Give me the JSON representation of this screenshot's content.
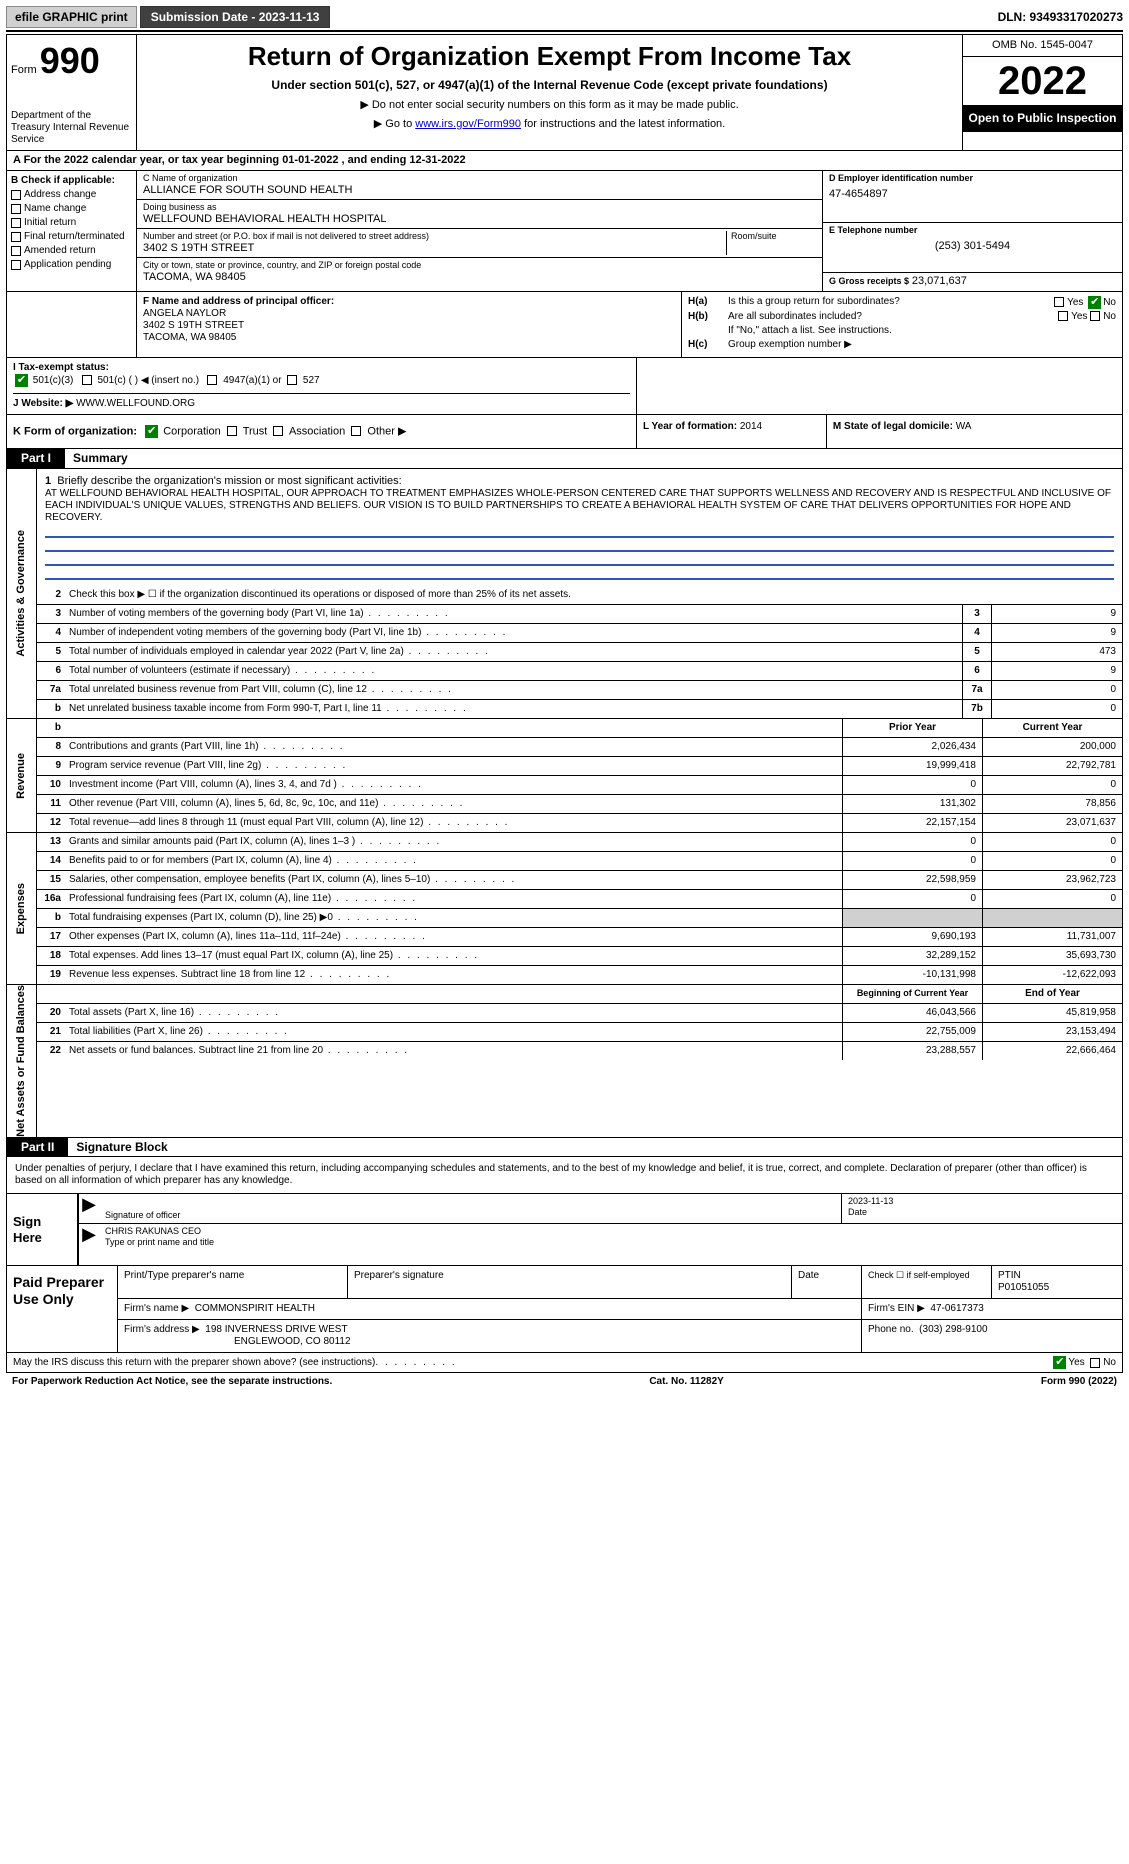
{
  "topbar": {
    "efile": "efile GRAPHIC print",
    "submission": "Submission Date - 2023-11-13",
    "dln": "DLN: 93493317020273"
  },
  "header": {
    "form_word": "Form",
    "form_num": "990",
    "dept": "Department of the Treasury\nInternal Revenue Service",
    "title": "Return of Organization Exempt From Income Tax",
    "sub1": "Under section 501(c), 527, or 4947(a)(1) of the Internal Revenue Code (except private foundations)",
    "sub2a": "▶ Do not enter social security numbers on this form as it may be made public.",
    "sub2b_pre": "▶ Go to ",
    "sub2b_link": "www.irs.gov/Form990",
    "sub2b_post": " for instructions and the latest information.",
    "omb": "OMB No. 1545-0047",
    "year": "2022",
    "open": "Open to Public Inspection"
  },
  "sectionA": "A  For the 2022 calendar year, or tax year beginning 01-01-2022    , and ending 12-31-2022",
  "B": {
    "title": "B Check if applicable:",
    "items": [
      "Address change",
      "Name change",
      "Initial return",
      "Final return/terminated",
      "Amended return",
      "Application pending"
    ]
  },
  "C": {
    "name_label": "C Name of organization",
    "name": "ALLIANCE FOR SOUTH SOUND HEALTH",
    "dba_label": "Doing business as",
    "dba": "WELLFOUND BEHAVIORAL HEALTH HOSPITAL",
    "street_label": "Number and street (or P.O. box if mail is not delivered to street address)",
    "room_label": "Room/suite",
    "street": "3402 S 19TH STREET",
    "city_label": "City or town, state or province, country, and ZIP or foreign postal code",
    "city": "TACOMA, WA  98405"
  },
  "D": {
    "label": "D Employer identification number",
    "value": "47-4654897"
  },
  "E": {
    "label": "E Telephone number",
    "value": "(253) 301-5494"
  },
  "G": {
    "label": "G Gross receipts $",
    "value": "23,071,637"
  },
  "F": {
    "label": "F  Name and address of principal officer:",
    "name": "ANGELA NAYLOR",
    "street": "3402 S 19TH STREET",
    "city": "TACOMA, WA  98405"
  },
  "H": {
    "ha_label": "H(a)",
    "ha_text": "Is this a group return for subordinates?",
    "hb_label": "H(b)",
    "hb_text": "Are all subordinates included?",
    "hb_note": "If \"No,\" attach a list. See instructions.",
    "hc_label": "H(c)",
    "hc_text": "Group exemption number ▶",
    "yes": "Yes",
    "no": "No"
  },
  "I": {
    "label": "I    Tax-exempt status:",
    "opts": [
      "501(c)(3)",
      "501(c) (  ) ◀ (insert no.)",
      "4947(a)(1) or",
      "527"
    ]
  },
  "J": {
    "label": "J   Website: ▶",
    "value": "WWW.WELLFOUND.ORG"
  },
  "K": {
    "label": "K Form of organization:",
    "opts": [
      "Corporation",
      "Trust",
      "Association",
      "Other ▶"
    ]
  },
  "L": {
    "label": "L Year of formation:",
    "value": "2014"
  },
  "M": {
    "label": "M State of legal domicile:",
    "value": "WA"
  },
  "part1": {
    "label": "Part I",
    "title": "Summary"
  },
  "mission": {
    "num": "1",
    "label": "Briefly describe the organization's mission or most significant activities:",
    "text": "AT WELLFOUND BEHAVIORAL HEALTH HOSPITAL, OUR APPROACH TO TREATMENT EMPHASIZES WHOLE-PERSON CENTERED CARE THAT SUPPORTS WELLNESS AND RECOVERY AND IS RESPECTFUL AND INCLUSIVE OF EACH INDIVIDUAL'S UNIQUE VALUES, STRENGTHS AND BELIEFS. OUR VISION IS TO BUILD PARTNERSHIPS TO CREATE A BEHAVIORAL HEALTH SYSTEM OF CARE THAT DELIVERS OPPORTUNITIES FOR HOPE AND RECOVERY."
  },
  "activities": {
    "side": "Activities & Governance",
    "rows": [
      {
        "n": "2",
        "t": "Check this box ▶ ☐  if the organization discontinued its operations or disposed of more than 25% of its net assets.",
        "ref": "",
        "v": ""
      },
      {
        "n": "3",
        "t": "Number of voting members of the governing body (Part VI, line 1a)",
        "ref": "3",
        "v": "9"
      },
      {
        "n": "4",
        "t": "Number of independent voting members of the governing body (Part VI, line 1b)",
        "ref": "4",
        "v": "9"
      },
      {
        "n": "5",
        "t": "Total number of individuals employed in calendar year 2022 (Part V, line 2a)",
        "ref": "5",
        "v": "473"
      },
      {
        "n": "6",
        "t": "Total number of volunteers (estimate if necessary)",
        "ref": "6",
        "v": "9"
      },
      {
        "n": "7a",
        "t": "Total unrelated business revenue from Part VIII, column (C), line 12",
        "ref": "7a",
        "v": "0"
      },
      {
        "n": "b",
        "t": "Net unrelated business taxable income from Form 990-T, Part I, line 11",
        "ref": "7b",
        "v": "0"
      }
    ]
  },
  "revenue": {
    "side": "Revenue",
    "prior_h": "Prior Year",
    "curr_h": "Current Year",
    "rows": [
      {
        "n": "8",
        "t": "Contributions and grants (Part VIII, line 1h)",
        "p": "2,026,434",
        "c": "200,000"
      },
      {
        "n": "9",
        "t": "Program service revenue (Part VIII, line 2g)",
        "p": "19,999,418",
        "c": "22,792,781"
      },
      {
        "n": "10",
        "t": "Investment income (Part VIII, column (A), lines 3, 4, and 7d )",
        "p": "0",
        "c": "0"
      },
      {
        "n": "11",
        "t": "Other revenue (Part VIII, column (A), lines 5, 6d, 8c, 9c, 10c, and 11e)",
        "p": "131,302",
        "c": "78,856"
      },
      {
        "n": "12",
        "t": "Total revenue—add lines 8 through 11 (must equal Part VIII, column (A), line 12)",
        "p": "22,157,154",
        "c": "23,071,637"
      }
    ]
  },
  "expenses": {
    "side": "Expenses",
    "rows": [
      {
        "n": "13",
        "t": "Grants and similar amounts paid (Part IX, column (A), lines 1–3 )",
        "p": "0",
        "c": "0"
      },
      {
        "n": "14",
        "t": "Benefits paid to or for members (Part IX, column (A), line 4)",
        "p": "0",
        "c": "0"
      },
      {
        "n": "15",
        "t": "Salaries, other compensation, employee benefits (Part IX, column (A), lines 5–10)",
        "p": "22,598,959",
        "c": "23,962,723"
      },
      {
        "n": "16a",
        "t": "Professional fundraising fees (Part IX, column (A), line 11e)",
        "p": "0",
        "c": "0"
      },
      {
        "n": "b",
        "t": "Total fundraising expenses (Part IX, column (D), line 25) ▶0",
        "p": "GRAY",
        "c": "GRAY"
      },
      {
        "n": "17",
        "t": "Other expenses (Part IX, column (A), lines 11a–11d, 11f–24e)",
        "p": "9,690,193",
        "c": "11,731,007"
      },
      {
        "n": "18",
        "t": "Total expenses. Add lines 13–17 (must equal Part IX, column (A), line 25)",
        "p": "32,289,152",
        "c": "35,693,730"
      },
      {
        "n": "19",
        "t": "Revenue less expenses. Subtract line 18 from line 12",
        "p": "-10,131,998",
        "c": "-12,622,093"
      }
    ]
  },
  "netassets": {
    "side": "Net Assets or Fund Balances",
    "begin_h": "Beginning of Current Year",
    "end_h": "End of Year",
    "rows": [
      {
        "n": "20",
        "t": "Total assets (Part X, line 16)",
        "p": "46,043,566",
        "c": "45,819,958"
      },
      {
        "n": "21",
        "t": "Total liabilities (Part X, line 26)",
        "p": "22,755,009",
        "c": "23,153,494"
      },
      {
        "n": "22",
        "t": "Net assets or fund balances. Subtract line 21 from line 20",
        "p": "23,288,557",
        "c": "22,666,464"
      }
    ]
  },
  "part2": {
    "label": "Part II",
    "title": "Signature Block"
  },
  "sig_declaration": "Under penalties of perjury, I declare that I have examined this return, including accompanying schedules and statements, and to the best of my knowledge and belief, it is true, correct, and complete. Declaration of preparer (other than officer) is based on all information of which preparer has any knowledge.",
  "sign": {
    "here": "Sign Here",
    "sig_label": "Signature of officer",
    "date_label": "Date",
    "date": "2023-11-13",
    "name": "CHRIS RAKUNAS  CEO",
    "name_label": "Type or print name and title"
  },
  "preparer": {
    "title": "Paid Preparer Use Only",
    "h1": "Print/Type preparer's name",
    "h2": "Preparer's signature",
    "h3": "Date",
    "h4": "Check ☐ if self-employed",
    "h5_label": "PTIN",
    "h5": "P01051055",
    "firm_name_label": "Firm's name    ▶",
    "firm_name": "COMMONSPIRIT HEALTH",
    "firm_ein_label": "Firm's EIN ▶",
    "firm_ein": "47-0617373",
    "firm_addr_label": "Firm's address ▶",
    "firm_addr1": "198 INVERNESS DRIVE WEST",
    "firm_addr2": "ENGLEWOOD, CO  80112",
    "phone_label": "Phone no.",
    "phone": "(303) 298-9100"
  },
  "discuss": {
    "text": "May the IRS discuss this return with the preparer shown above? (see instructions)",
    "yes": "Yes",
    "no": "No"
  },
  "footer": {
    "left": "For Paperwork Reduction Act Notice, see the separate instructions.",
    "mid": "Cat. No. 11282Y",
    "right": "Form 990 (2022)"
  }
}
